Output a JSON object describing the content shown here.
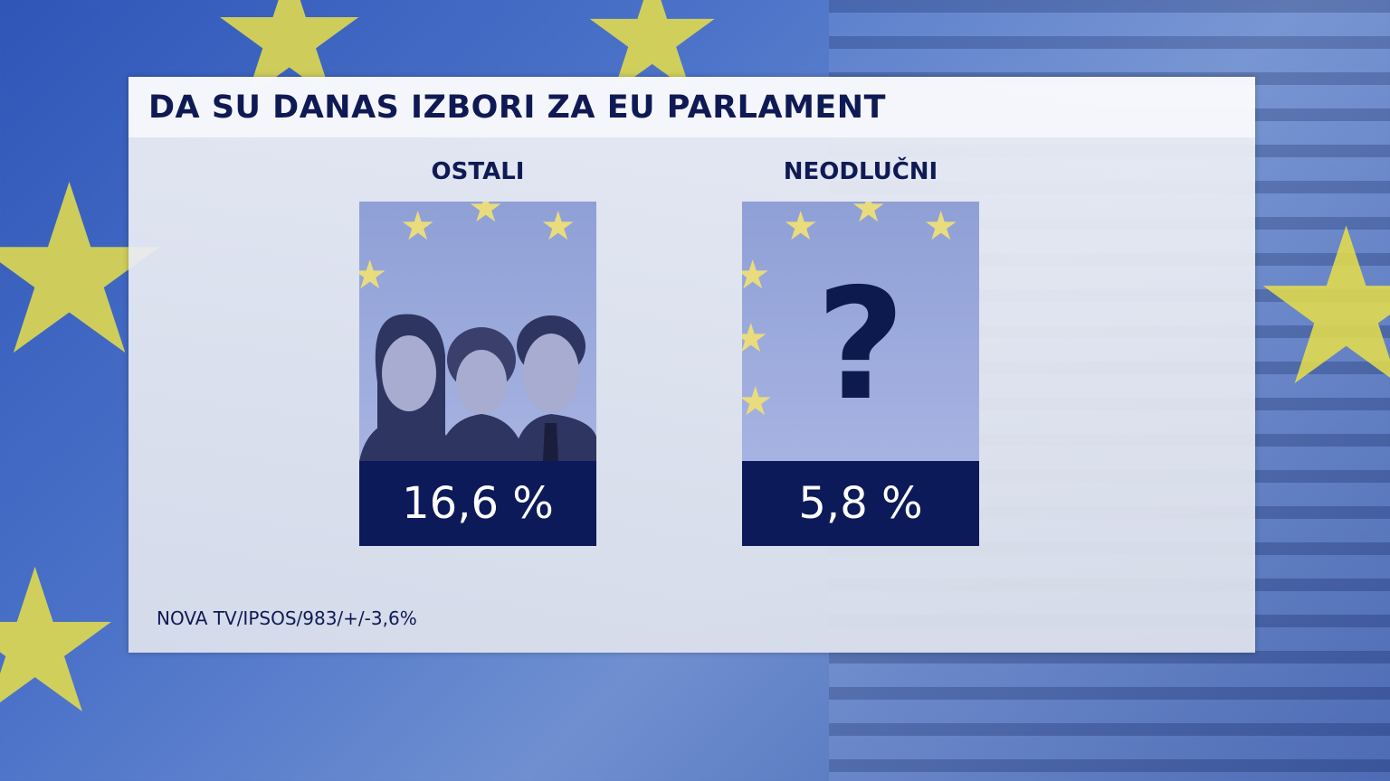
{
  "title": "DA SU DANAS IZBORI ZA EU PARLAMENT",
  "cards": [
    {
      "label": "OSTALI",
      "value": "16,6 %",
      "icon": "people-silhouettes-icon"
    },
    {
      "label": "NEODLUČNI",
      "value": "5,8 %",
      "icon": "question-mark-icon"
    }
  ],
  "source": "NOVA TV/IPSOS/983/+/-3,6%",
  "colors": {
    "navy": "#0c1a5a",
    "eu_star": "#e8e04a"
  }
}
